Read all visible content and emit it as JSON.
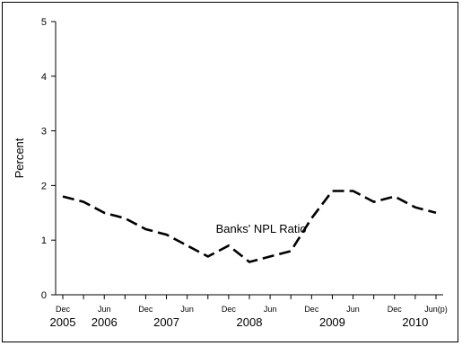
{
  "chart_data": {
    "type": "line",
    "ylabel": "Percent",
    "ylim": [
      0,
      5
    ],
    "yticks": [
      "0",
      "1",
      "2",
      "3",
      "4",
      "5"
    ],
    "month_labels": [
      "Dec",
      "Jun",
      "Dec",
      "Jun",
      "Dec",
      "Jun",
      "Dec",
      "Jun",
      "Dec",
      "Jun(p)"
    ],
    "year_labels": [
      "2005",
      "2006",
      "2007",
      "2008",
      "2009",
      "2010"
    ],
    "annotation": "Banks' NPL Ratio",
    "grid": false,
    "series": [
      {
        "line_style": "dashed",
        "color": "#000000",
        "x": [
          "2005-12",
          "2006-03",
          "2006-06",
          "2006-09",
          "2006-12",
          "2007-03",
          "2007-06",
          "2007-09",
          "2007-12",
          "2008-03",
          "2008-06",
          "2008-09",
          "2008-12",
          "2009-03",
          "2009-06",
          "2009-09",
          "2009-12",
          "2010-03",
          "2010-06"
        ],
        "values": [
          1.8,
          1.7,
          1.5,
          1.4,
          1.2,
          1.1,
          0.9,
          0.7,
          0.9,
          0.6,
          0.7,
          0.8,
          1.4,
          1.9,
          1.9,
          1.7,
          1.8,
          1.6,
          1.5
        ]
      }
    ]
  }
}
